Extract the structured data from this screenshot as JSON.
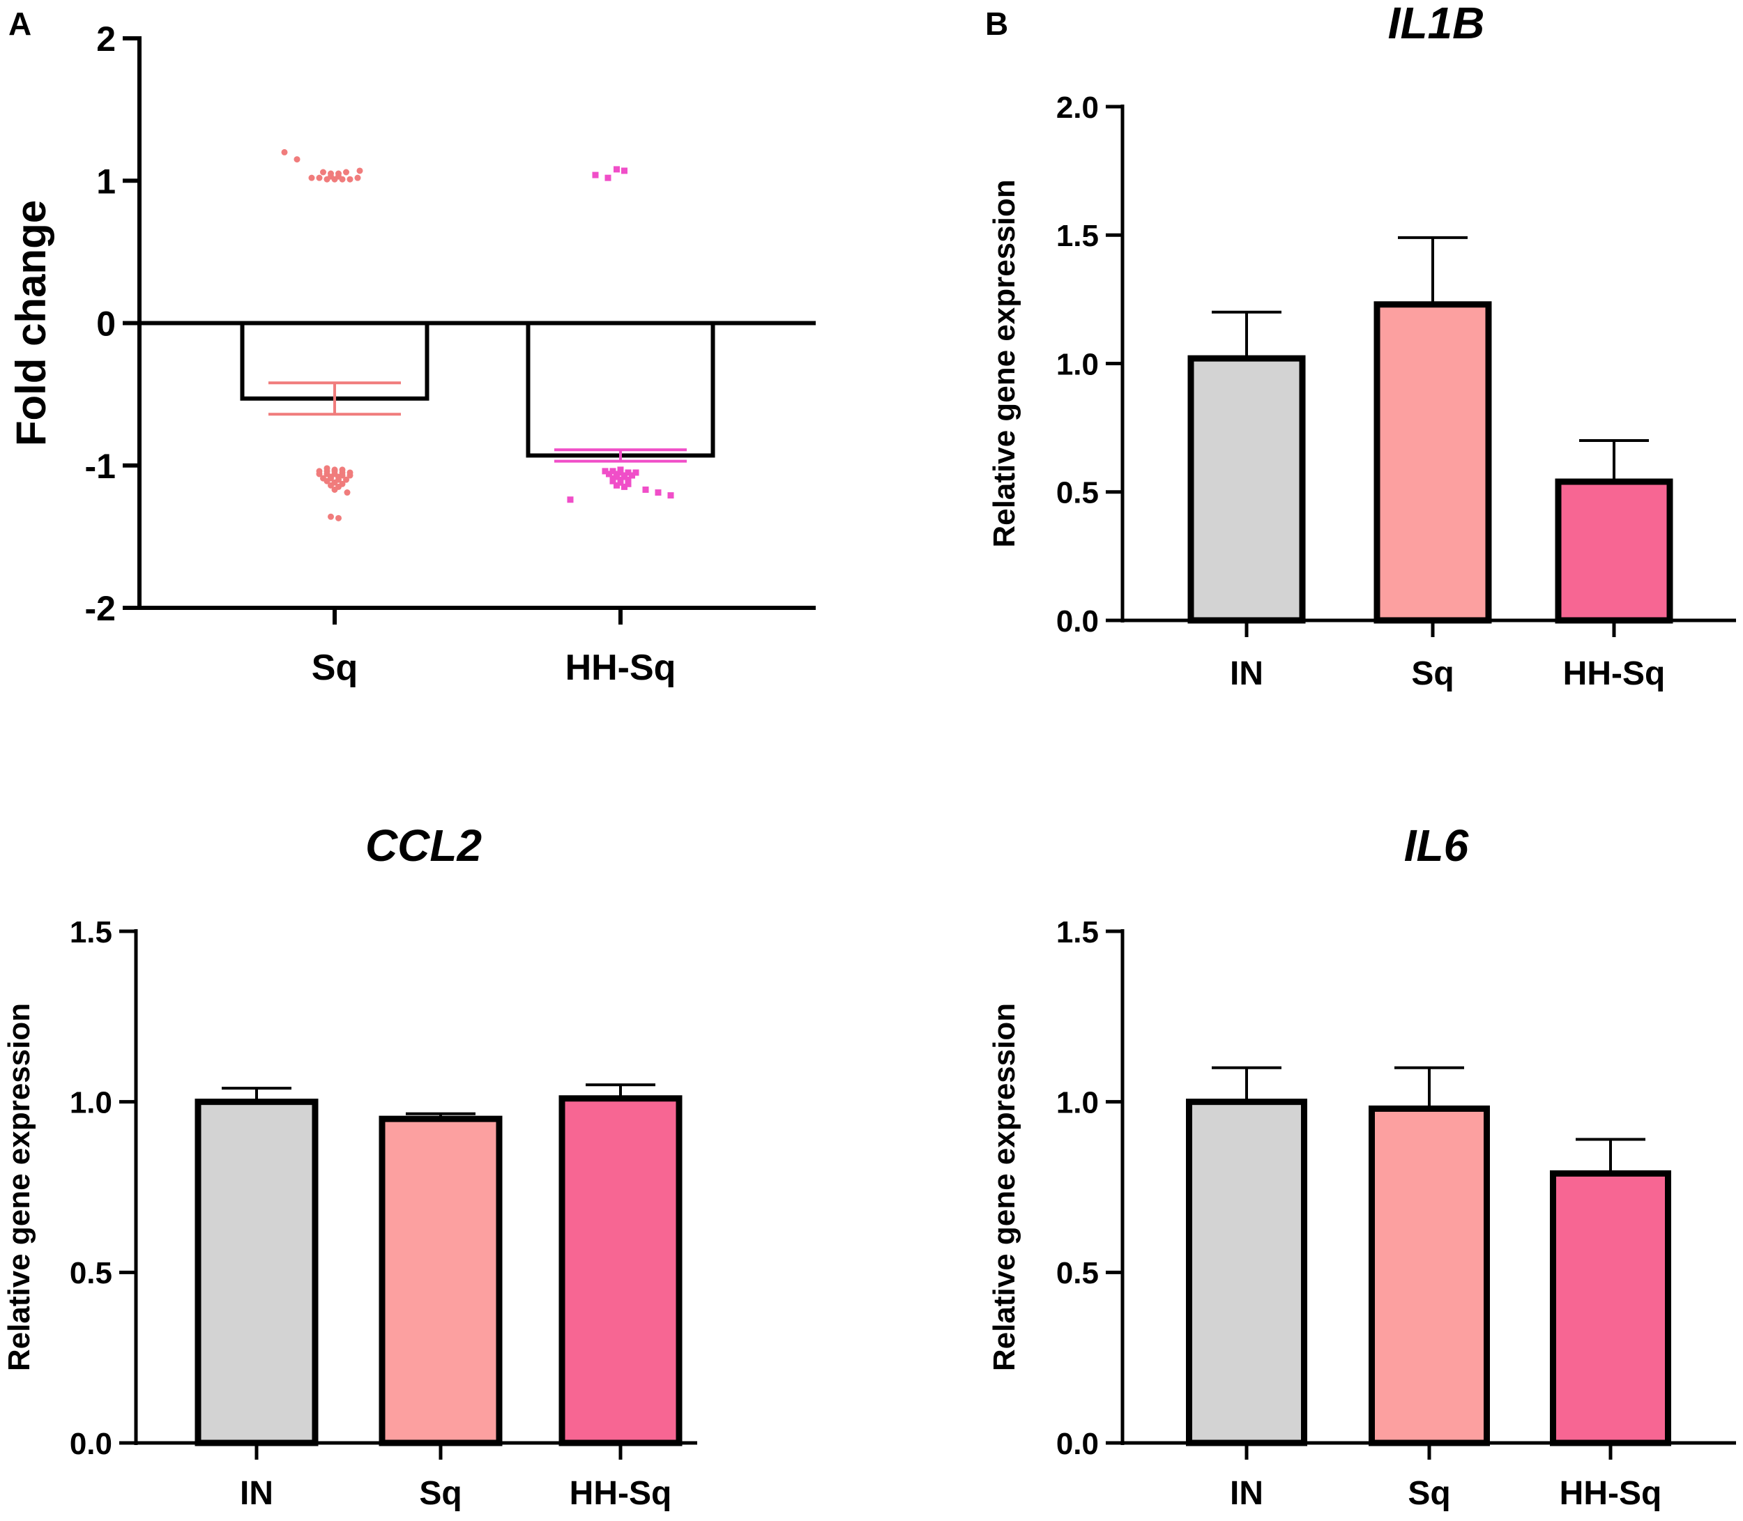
{
  "figure": {
    "panel_a_label": "A",
    "panel_b_label": "B"
  },
  "colors": {
    "IN": "#d3d3d3",
    "Sq": "#fca0a0",
    "HH-Sq": "#f76693",
    "sq_dots": "#f07c7c",
    "hhsq_dots": "#f04ec8",
    "axis": "#000000"
  },
  "chart_data": [
    {
      "id": "A",
      "type": "bar",
      "title": "",
      "ylabel": "Fold change",
      "xlabel": "",
      "categories": [
        "Sq",
        "HH-Sq"
      ],
      "values": [
        -0.53,
        -0.93
      ],
      "error": [
        0.11,
        0.04
      ],
      "ylim": [
        -2,
        2
      ],
      "yticks": [
        2,
        1,
        0,
        -1,
        -2
      ],
      "ytick_labels": [
        "2",
        "1",
        "0",
        "-1",
        "-2"
      ],
      "points": [
        {
          "category": "Sq",
          "values": [
            1.2,
            1.15,
            1.06,
            1.05,
            1.03,
            1.02,
            1.02,
            1.01,
            1.01,
            1.01,
            1.01,
            1.02,
            1.03,
            1.05,
            1.06,
            1.07,
            -1.02,
            -1.03,
            -1.03,
            -1.04,
            -1.04,
            -1.04,
            -1.05,
            -1.05,
            -1.06,
            -1.06,
            -1.06,
            -1.07,
            -1.07,
            -1.08,
            -1.08,
            -1.09,
            -1.09,
            -1.1,
            -1.1,
            -1.11,
            -1.12,
            -1.13,
            -1.14,
            -1.15,
            -1.17,
            -1.19,
            -1.36,
            -1.37
          ]
        },
        {
          "category": "HH-Sq",
          "values": [
            1.08,
            1.07,
            1.04,
            1.02,
            -1.03,
            -1.04,
            -1.04,
            -1.05,
            -1.05,
            -1.05,
            -1.06,
            -1.06,
            -1.07,
            -1.07,
            -1.08,
            -1.08,
            -1.09,
            -1.1,
            -1.1,
            -1.11,
            -1.12,
            -1.13,
            -1.14,
            -1.15,
            -1.17,
            -1.19,
            -1.21,
            -1.24
          ]
        }
      ]
    },
    {
      "id": "IL1B",
      "type": "bar",
      "title": "IL1B",
      "ylabel": "Relative gene expression",
      "xlabel": "",
      "categories": [
        "IN",
        "Sq",
        "HH-Sq"
      ],
      "values": [
        1.02,
        1.23,
        0.54
      ],
      "error": [
        0.18,
        0.26,
        0.16
      ],
      "ylim": [
        0,
        2
      ],
      "yticks": [
        2,
        1.5,
        1,
        0.5,
        0
      ],
      "ytick_labels": [
        "2.0",
        "1.5",
        "1.0",
        "0.5",
        "0.0"
      ]
    },
    {
      "id": "CCL2",
      "type": "bar",
      "title": "CCL2",
      "ylabel": "Relative gene expression",
      "xlabel": "",
      "categories": [
        "IN",
        "Sq",
        "HH-Sq"
      ],
      "values": [
        1.0,
        0.95,
        1.01
      ],
      "error": [
        0.04,
        0.015,
        0.04
      ],
      "ylim": [
        0,
        1.5
      ],
      "yticks": [
        1.5,
        1,
        0.5,
        0
      ],
      "ytick_labels": [
        "1.5",
        "1.0",
        "0.5",
        "0.0"
      ]
    },
    {
      "id": "IL6",
      "type": "bar",
      "title": "IL6",
      "ylabel": "Relative gene expression",
      "xlabel": "",
      "categories": [
        "IN",
        "Sq",
        "HH-Sq"
      ],
      "values": [
        1.0,
        0.98,
        0.79
      ],
      "error": [
        0.1,
        0.12,
        0.1
      ],
      "ylim": [
        0,
        1.5
      ],
      "yticks": [
        1.5,
        1,
        0.5,
        0
      ],
      "ytick_labels": [
        "1.5",
        "1.0",
        "0.5",
        "0.0"
      ]
    }
  ]
}
